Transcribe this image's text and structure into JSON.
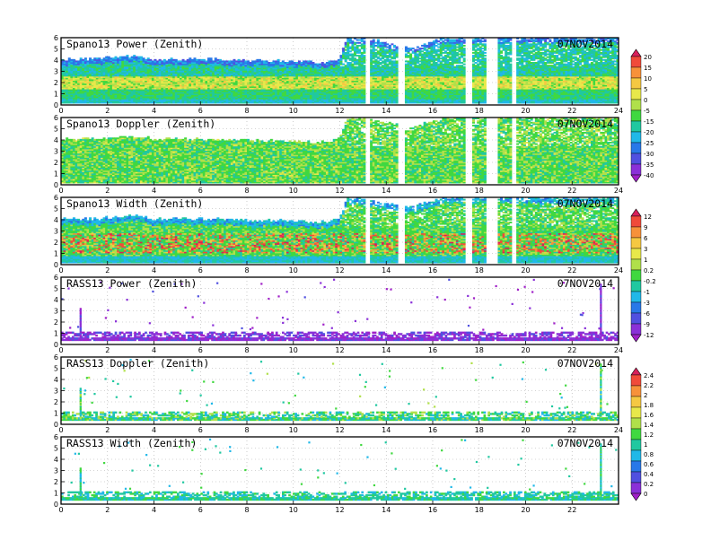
{
  "chart_data": {
    "type": "heatmap",
    "panels": [
      {
        "title": "Spano13 Power (Zenith)",
        "date": "07NOV2014",
        "kind": "spano",
        "variable": "power",
        "colorbar": "power"
      },
      {
        "title": "Spano13 Doppler (Zenith)",
        "date": "07NOV2014",
        "kind": "spano",
        "variable": "doppler",
        "colorbar": "power"
      },
      {
        "title": "Spano13 Width (Zenith)",
        "date": "07NOV2014",
        "kind": "spano",
        "variable": "width",
        "colorbar": "width"
      },
      {
        "title": "RASS13 Power (Zenith)",
        "date": "07NOV2014",
        "kind": "rass",
        "variable": "power",
        "colorbar": "width"
      },
      {
        "title": "RASS13 Doppler (Zenith)",
        "date": "07NOV2014",
        "kind": "rass",
        "variable": "doppler",
        "colorbar": "doppler"
      },
      {
        "title": "RASS13 Width (Zenith)",
        "date": "07NOV2014",
        "kind": "rass",
        "variable": "width",
        "colorbar": "doppler"
      }
    ],
    "x_ticks": [
      "0",
      "2",
      "4",
      "6",
      "8",
      "10",
      "12",
      "14",
      "16",
      "18",
      "20",
      "22",
      "24"
    ],
    "x_ticks_last_panel": [
      "0",
      "2",
      "4",
      "6",
      "8",
      "10",
      "12",
      "14",
      "16",
      "18",
      "20",
      "22"
    ],
    "xlim": [
      0,
      24
    ],
    "y_ticks": [
      "0",
      "1",
      "2",
      "3",
      "4",
      "5",
      "6"
    ],
    "ylim": [
      0,
      6
    ],
    "grid": true,
    "colorbars": [
      {
        "id": "power",
        "labels": [
          "20",
          "15",
          "10",
          "5",
          "0",
          "-5",
          "-15",
          "-20",
          "-25",
          "-30",
          "-35",
          "-40"
        ],
        "colors": [
          "#d8205a",
          "#f04a3a",
          "#f7913a",
          "#f5c842",
          "#e8e84a",
          "#b0e04a",
          "#40d840",
          "#20c8a0",
          "#20b8e8",
          "#2878e8",
          "#5050e0",
          "#8a30d8",
          "#a020c8"
        ]
      },
      {
        "id": "width",
        "labels": [
          "12",
          "9",
          "6",
          "3",
          "1",
          "0.2",
          "-0.2",
          "-1",
          "-3",
          "-6",
          "-9",
          "-12"
        ],
        "colors": [
          "#d8205a",
          "#f04a3a",
          "#f7913a",
          "#f5c842",
          "#e8e84a",
          "#b0e04a",
          "#40d840",
          "#20c8a0",
          "#20b8e8",
          "#2878e8",
          "#5050e0",
          "#8a30d8",
          "#a020c8"
        ]
      },
      {
        "id": "doppler",
        "labels": [
          "2.4",
          "2.2",
          "2",
          "1.8",
          "1.6",
          "1.4",
          "1.2",
          "1",
          "0.8",
          "0.6",
          "0.4",
          "0.2",
          "0"
        ],
        "colors": [
          "#d8205a",
          "#f04a3a",
          "#f7913a",
          "#f5c842",
          "#e8e84a",
          "#b0e04a",
          "#40d840",
          "#20c8a0",
          "#20b8e8",
          "#2878e8",
          "#5050e0",
          "#8a30d8",
          "#a020c8"
        ]
      }
    ],
    "spano_gaps_hours": [
      [
        13.1,
        13.3
      ],
      [
        14.5,
        14.8
      ],
      [
        17.4,
        17.7
      ],
      [
        18.3,
        18.8
      ],
      [
        19.4,
        19.6
      ]
    ],
    "spano_top_height_km": [
      [
        0,
        4.05
      ],
      [
        1.5,
        4.1
      ],
      [
        3.2,
        4.4
      ],
      [
        4.0,
        4.1
      ],
      [
        6.0,
        4.1
      ],
      [
        8.0,
        4.0
      ],
      [
        10.0,
        3.9
      ],
      [
        11.5,
        3.8
      ],
      [
        12.0,
        4.2
      ],
      [
        12.3,
        6.0
      ],
      [
        13.0,
        6.0
      ],
      [
        15.0,
        5.1
      ],
      [
        16.5,
        6.0
      ],
      [
        24.0,
        6.0
      ]
    ],
    "rass_spike_hours": [
      0.8,
      23.2
    ]
  }
}
